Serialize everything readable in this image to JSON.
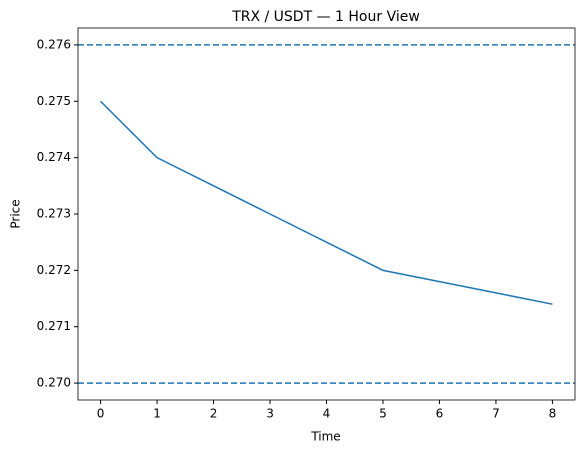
{
  "chart_data": {
    "type": "line",
    "title": "TRX / USDT — 1 Hour View",
    "x_label": "Time",
    "y_label": "Price",
    "x": [
      0,
      1,
      2,
      3,
      4,
      5,
      6,
      7,
      8
    ],
    "series": [
      {
        "name": "Price",
        "color": "#1f77b4",
        "values": [
          0.275,
          0.274,
          0.2735,
          0.273,
          0.2725,
          0.272,
          0.2718,
          0.2716,
          0.2714
        ]
      }
    ],
    "hlines": [
      0.276,
      0.27
    ],
    "hline_color": "#1f77b4",
    "xlim": [
      -0.4,
      8.4
    ],
    "xticks": [
      0,
      1,
      2,
      3,
      4,
      5,
      6,
      7,
      8
    ],
    "ylim": [
      0.2697,
      0.2763
    ],
    "yticks": [
      {
        "value": 0.27,
        "label": "0.270"
      },
      0.271,
      0.272,
      0.273,
      0.274,
      0.275,
      0.276
    ]
  }
}
